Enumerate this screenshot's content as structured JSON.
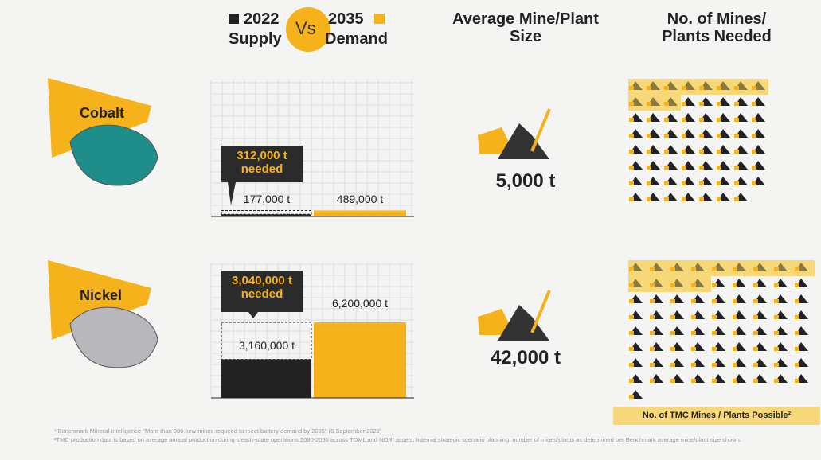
{
  "header": {
    "supply_year": "2022",
    "supply_label": "Supply",
    "vs": "Vs",
    "demand_year": "2035",
    "demand_label": "Demand",
    "mine_size_title": "Average Mine/Plant Size",
    "mines_needed_title": "No. of Mines/ Plants Needed"
  },
  "rows": [
    {
      "mineral": "Cobalt",
      "supply": 177000,
      "supply_label": "177,000 t",
      "demand": 489000,
      "demand_label": "489,000 t",
      "gap_label": "312,000 t needed",
      "mine_size": "5,000 t",
      "mines_needed": 63,
      "tmc_possible": 11
    },
    {
      "mineral": "Nickel",
      "supply": 3160000,
      "supply_label": "3,160,000 t",
      "demand": 6200000,
      "demand_label": "6,200,000 t",
      "gap_label": "3,040,000 t needed",
      "mine_size": "42,000 t",
      "mines_needed": 73,
      "tmc_possible": 13
    }
  ],
  "tmc_legend": "No. of TMC Mines / Plants Possible²",
  "footnotes": [
    "¹ Benchmark Mineral Intelligence \"More than 300 new mines required to meet battery demand by 2035\" (6 September 2022)",
    "²TMC production data is based on average annual production during steady-state operations 2030-2035 across TOML and NORI assets. Internal strategic scenario planning; number of mines/plants as determined per Benchmark average mine/plant size shown."
  ]
}
